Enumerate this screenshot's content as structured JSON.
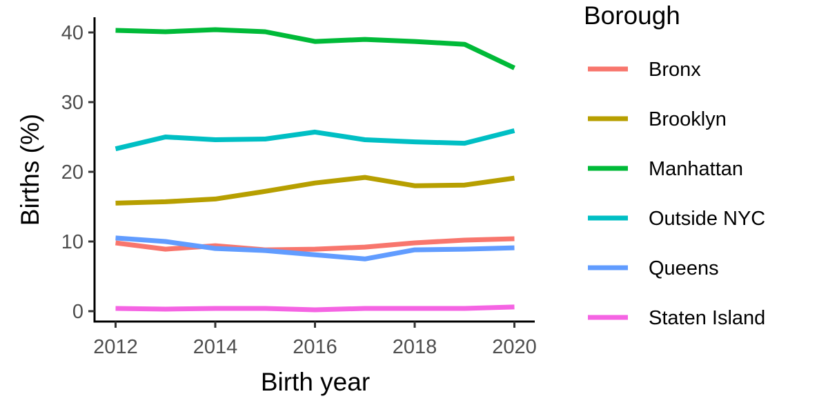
{
  "chart_data": {
    "type": "line",
    "xlabel": "Birth year",
    "ylabel": "Births (%)",
    "xlim": [
      2011.95,
      2020.5
    ],
    "ylim": [
      -1.7,
      42.5
    ],
    "x_ticks": [
      2012,
      2014,
      2016,
      2018,
      2020
    ],
    "y_ticks": [
      0,
      10,
      20,
      30,
      40
    ],
    "grid": false,
    "legend": {
      "title": "Borough",
      "position": "right"
    },
    "x": [
      2012,
      2013,
      2014,
      2015,
      2016,
      2017,
      2018,
      2019,
      2020
    ],
    "series": [
      {
        "name": "Bronx",
        "color": "#F8766D",
        "values": [
          9.8,
          8.9,
          9.4,
          8.8,
          8.9,
          9.2,
          9.8,
          10.2,
          10.4
        ]
      },
      {
        "name": "Brooklyn",
        "color": "#B79F00",
        "values": [
          15.5,
          15.7,
          16.1,
          17.2,
          18.4,
          19.2,
          18.0,
          18.1,
          19.1
        ]
      },
      {
        "name": "Manhattan",
        "color": "#00BA38",
        "values": [
          40.3,
          40.1,
          40.4,
          40.1,
          38.7,
          39.0,
          38.7,
          38.3,
          34.9
        ]
      },
      {
        "name": "Outside NYC",
        "color": "#00BFC4",
        "values": [
          23.3,
          25.0,
          24.6,
          24.7,
          25.7,
          24.6,
          24.3,
          24.1,
          25.9
        ]
      },
      {
        "name": "Queens",
        "color": "#619CFF",
        "values": [
          10.5,
          10.0,
          9.0,
          8.7,
          8.1,
          7.5,
          8.8,
          8.9,
          9.1
        ]
      },
      {
        "name": "Staten Island",
        "color": "#F564E3",
        "values": [
          0.4,
          0.3,
          0.4,
          0.4,
          0.2,
          0.4,
          0.4,
          0.4,
          0.6
        ]
      }
    ]
  }
}
